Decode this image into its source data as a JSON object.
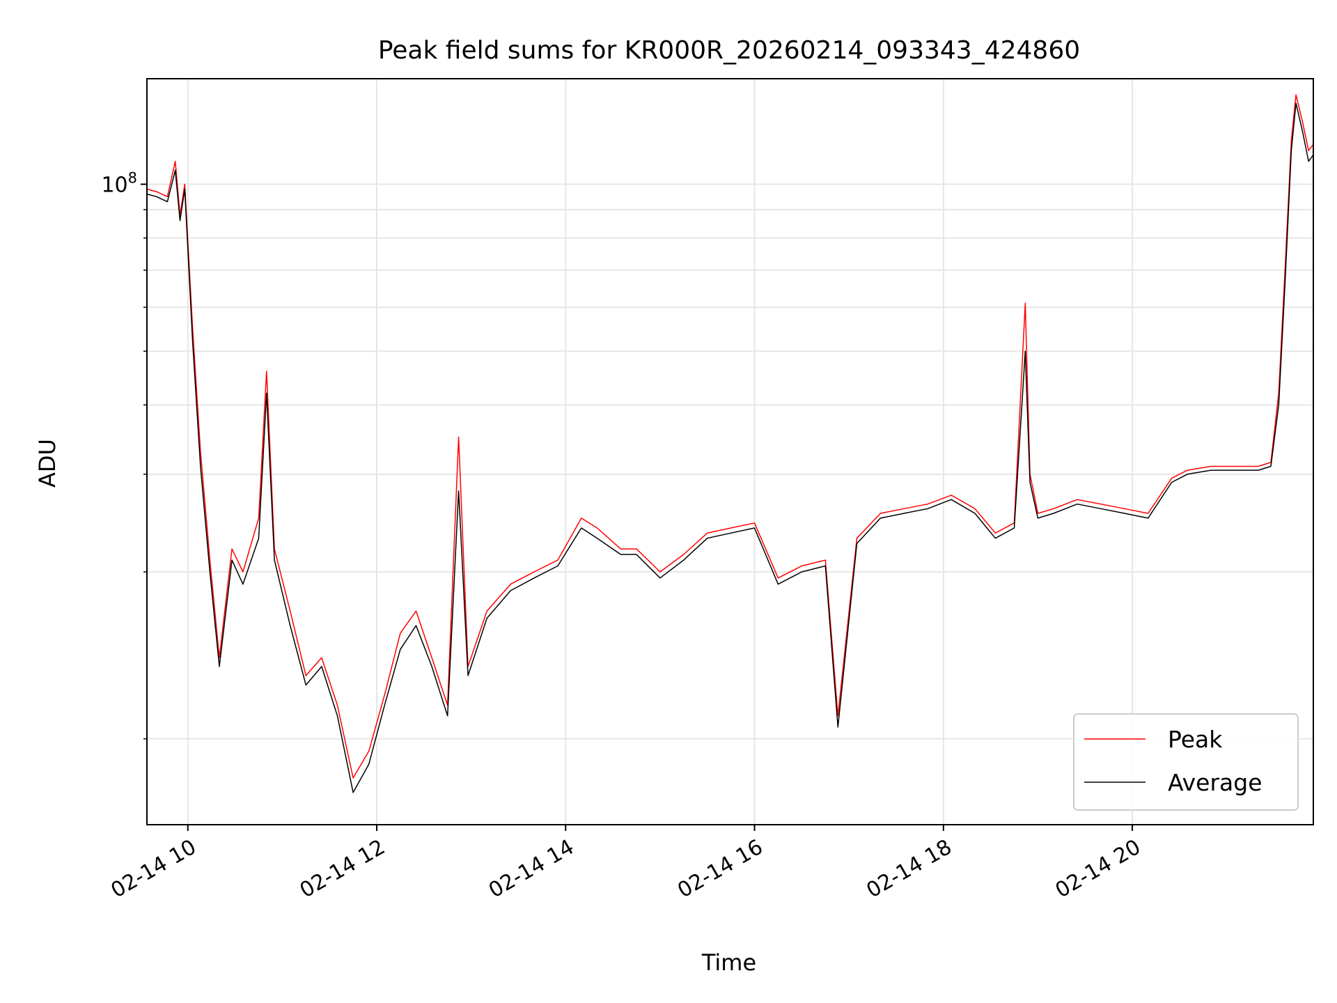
{
  "chart_data": {
    "type": "line",
    "title": "Peak field sums for KR000R_20260214_093343_424860",
    "xlabel": "Time",
    "ylabel": "ADU",
    "x_axis": {
      "kind": "time",
      "range": [
        "2026-02-14T09:34",
        "2026-02-14T21:55"
      ],
      "ticks": [
        "2026-02-14T10:00",
        "2026-02-14T12:00",
        "2026-02-14T14:00",
        "2026-02-14T16:00",
        "2026-02-14T18:00",
        "2026-02-14T20:00"
      ],
      "tick_labels": [
        "02-14 10",
        "02-14 12",
        "02-14 14",
        "02-14 16",
        "02-14 18",
        "02-14 20"
      ]
    },
    "y_axis": {
      "scale": "log",
      "range": [
        7000000,
        155000000
      ],
      "major_ticks": [
        100000000
      ],
      "major_tick_labels": [
        "10^8"
      ],
      "minor_ticks": [
        10000000,
        20000000,
        30000000,
        40000000,
        50000000,
        60000000,
        70000000,
        80000000,
        90000000,
        200000000
      ]
    },
    "grid": true,
    "legend": {
      "placement": "lower-right",
      "entries": [
        "Peak",
        "Average"
      ]
    },
    "series": [
      {
        "name": "Peak",
        "color": "#ff0000",
        "x": [
          "2026-02-14T09:34",
          "2026-02-14T09:40",
          "2026-02-14T09:47",
          "2026-02-14T09:52",
          "2026-02-14T09:55",
          "2026-02-14T09:58",
          "2026-02-14T10:03",
          "2026-02-14T10:08",
          "2026-02-14T10:14",
          "2026-02-14T10:20",
          "2026-02-14T10:28",
          "2026-02-14T10:35",
          "2026-02-14T10:45",
          "2026-02-14T10:50",
          "2026-02-14T10:55",
          "2026-02-14T11:05",
          "2026-02-14T11:15",
          "2026-02-14T11:25",
          "2026-02-14T11:35",
          "2026-02-14T11:45",
          "2026-02-14T11:55",
          "2026-02-14T12:05",
          "2026-02-14T12:15",
          "2026-02-14T12:25",
          "2026-02-14T12:35",
          "2026-02-14T12:45",
          "2026-02-14T12:52",
          "2026-02-14T12:58",
          "2026-02-14T13:10",
          "2026-02-14T13:25",
          "2026-02-14T13:40",
          "2026-02-14T13:55",
          "2026-02-14T14:10",
          "2026-02-14T14:20",
          "2026-02-14T14:35",
          "2026-02-14T14:45",
          "2026-02-14T15:00",
          "2026-02-14T15:15",
          "2026-02-14T15:30",
          "2026-02-14T15:45",
          "2026-02-14T16:00",
          "2026-02-14T16:15",
          "2026-02-14T16:30",
          "2026-02-14T16:45",
          "2026-02-14T16:53",
          "2026-02-14T17:05",
          "2026-02-14T17:20",
          "2026-02-14T17:35",
          "2026-02-14T17:50",
          "2026-02-14T18:05",
          "2026-02-14T18:20",
          "2026-02-14T18:33",
          "2026-02-14T18:45",
          "2026-02-14T18:52",
          "2026-02-14T18:55",
          "2026-02-14T19:00",
          "2026-02-14T19:10",
          "2026-02-14T19:25",
          "2026-02-14T19:40",
          "2026-02-14T19:55",
          "2026-02-14T20:10",
          "2026-02-14T20:25",
          "2026-02-14T20:35",
          "2026-02-14T20:50",
          "2026-02-14T21:05",
          "2026-02-14T21:20",
          "2026-02-14T21:28",
          "2026-02-14T21:33",
          "2026-02-14T21:37",
          "2026-02-14T21:41",
          "2026-02-14T21:44",
          "2026-02-14T21:48",
          "2026-02-14T21:52",
          "2026-02-14T21:55"
        ],
        "y": [
          98000000,
          97000000,
          95000000,
          110000000,
          88000000,
          100000000,
          55000000,
          33000000,
          21000000,
          14000000,
          22000000,
          20000000,
          25000000,
          46000000,
          22000000,
          17000000,
          13000000,
          14000000,
          11500000,
          8500000,
          9500000,
          12000000,
          15500000,
          17000000,
          14000000,
          11500000,
          35000000,
          13500000,
          17000000,
          19000000,
          20000000,
          21000000,
          25000000,
          24000000,
          22000000,
          22000000,
          20000000,
          21500000,
          23500000,
          24000000,
          24500000,
          19500000,
          20500000,
          21000000,
          11000000,
          23000000,
          25500000,
          26000000,
          26500000,
          27500000,
          26000000,
          23500000,
          24500000,
          61000000,
          30000000,
          25500000,
          26000000,
          27000000,
          26500000,
          26000000,
          25500000,
          29500000,
          30500000,
          31000000,
          31000000,
          31000000,
          31500000,
          42000000,
          70000000,
          120000000,
          145000000,
          130000000,
          115000000,
          118000000
        ]
      },
      {
        "name": "Average",
        "color": "#000000",
        "x": [
          "2026-02-14T09:34",
          "2026-02-14T09:40",
          "2026-02-14T09:47",
          "2026-02-14T09:52",
          "2026-02-14T09:55",
          "2026-02-14T09:58",
          "2026-02-14T10:03",
          "2026-02-14T10:08",
          "2026-02-14T10:14",
          "2026-02-14T10:20",
          "2026-02-14T10:28",
          "2026-02-14T10:35",
          "2026-02-14T10:45",
          "2026-02-14T10:50",
          "2026-02-14T10:55",
          "2026-02-14T11:05",
          "2026-02-14T11:15",
          "2026-02-14T11:25",
          "2026-02-14T11:35",
          "2026-02-14T11:45",
          "2026-02-14T11:55",
          "2026-02-14T12:05",
          "2026-02-14T12:15",
          "2026-02-14T12:25",
          "2026-02-14T12:35",
          "2026-02-14T12:45",
          "2026-02-14T12:52",
          "2026-02-14T12:58",
          "2026-02-14T13:10",
          "2026-02-14T13:25",
          "2026-02-14T13:40",
          "2026-02-14T13:55",
          "2026-02-14T14:10",
          "2026-02-14T14:20",
          "2026-02-14T14:35",
          "2026-02-14T14:45",
          "2026-02-14T15:00",
          "2026-02-14T15:15",
          "2026-02-14T15:30",
          "2026-02-14T15:45",
          "2026-02-14T16:00",
          "2026-02-14T16:15",
          "2026-02-14T16:30",
          "2026-02-14T16:45",
          "2026-02-14T16:53",
          "2026-02-14T17:05",
          "2026-02-14T17:20",
          "2026-02-14T17:35",
          "2026-02-14T17:50",
          "2026-02-14T18:05",
          "2026-02-14T18:20",
          "2026-02-14T18:33",
          "2026-02-14T18:45",
          "2026-02-14T18:52",
          "2026-02-14T18:55",
          "2026-02-14T19:00",
          "2026-02-14T19:10",
          "2026-02-14T19:25",
          "2026-02-14T19:40",
          "2026-02-14T19:55",
          "2026-02-14T20:10",
          "2026-02-14T20:25",
          "2026-02-14T20:35",
          "2026-02-14T20:50",
          "2026-02-14T21:05",
          "2026-02-14T21:20",
          "2026-02-14T21:28",
          "2026-02-14T21:33",
          "2026-02-14T21:37",
          "2026-02-14T21:41",
          "2026-02-14T21:44",
          "2026-02-14T21:48",
          "2026-02-14T21:52",
          "2026-02-14T21:55"
        ],
        "y": [
          96000000,
          95000000,
          93000000,
          106000000,
          86000000,
          98000000,
          52000000,
          31000000,
          20000000,
          13500000,
          21000000,
          19000000,
          23000000,
          42000000,
          21000000,
          16000000,
          12500000,
          13500000,
          11000000,
          8000000,
          9000000,
          11500000,
          14500000,
          16000000,
          13500000,
          11000000,
          28000000,
          13000000,
          16500000,
          18500000,
          19500000,
          20500000,
          24000000,
          23000000,
          21500000,
          21500000,
          19500000,
          21000000,
          23000000,
          23500000,
          24000000,
          19000000,
          20000000,
          20500000,
          10500000,
          22500000,
          25000000,
          25500000,
          26000000,
          27000000,
          25500000,
          23000000,
          24000000,
          50000000,
          29000000,
          25000000,
          25500000,
          26500000,
          26000000,
          25500000,
          25000000,
          29000000,
          30000000,
          30500000,
          30500000,
          30500000,
          31000000,
          40000000,
          66000000,
          115000000,
          140000000,
          125000000,
          110000000,
          113000000
        ]
      }
    ]
  }
}
